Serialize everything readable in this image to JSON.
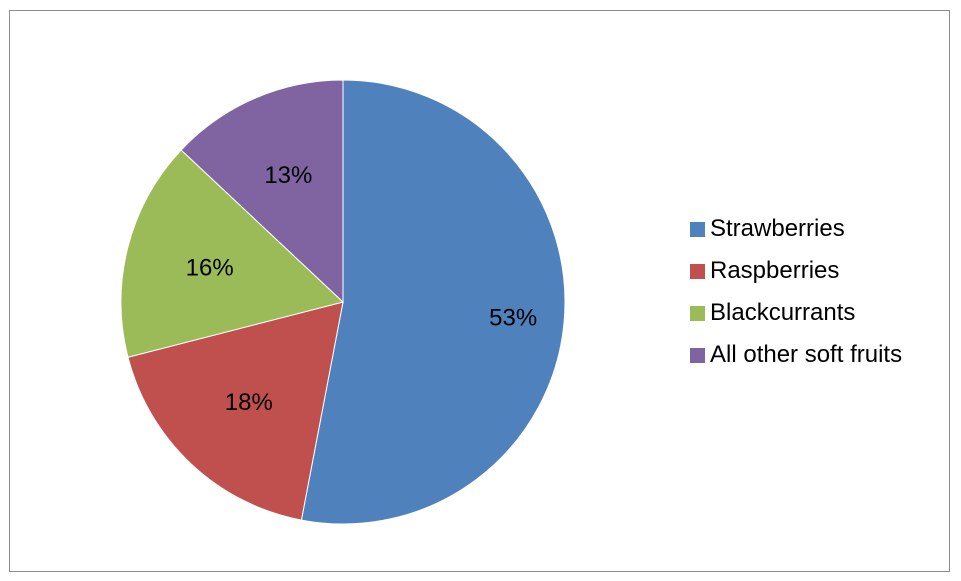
{
  "chart_data": {
    "type": "pie",
    "title": "",
    "slices": [
      {
        "label": "Strawberries",
        "value": 53,
        "display": "53%",
        "color": "#4F81BD"
      },
      {
        "label": "Raspberries",
        "value": 18,
        "display": "18%",
        "color": "#C0504D"
      },
      {
        "label": "Blackcurrants",
        "value": 16,
        "display": "16%",
        "color": "#9BBB59"
      },
      {
        "label": "All other soft fruits",
        "value": 13,
        "display": "13%",
        "color": "#8064A2"
      }
    ],
    "start_angle_deg": 0,
    "direction": "clockwise",
    "legend_position": "right"
  }
}
